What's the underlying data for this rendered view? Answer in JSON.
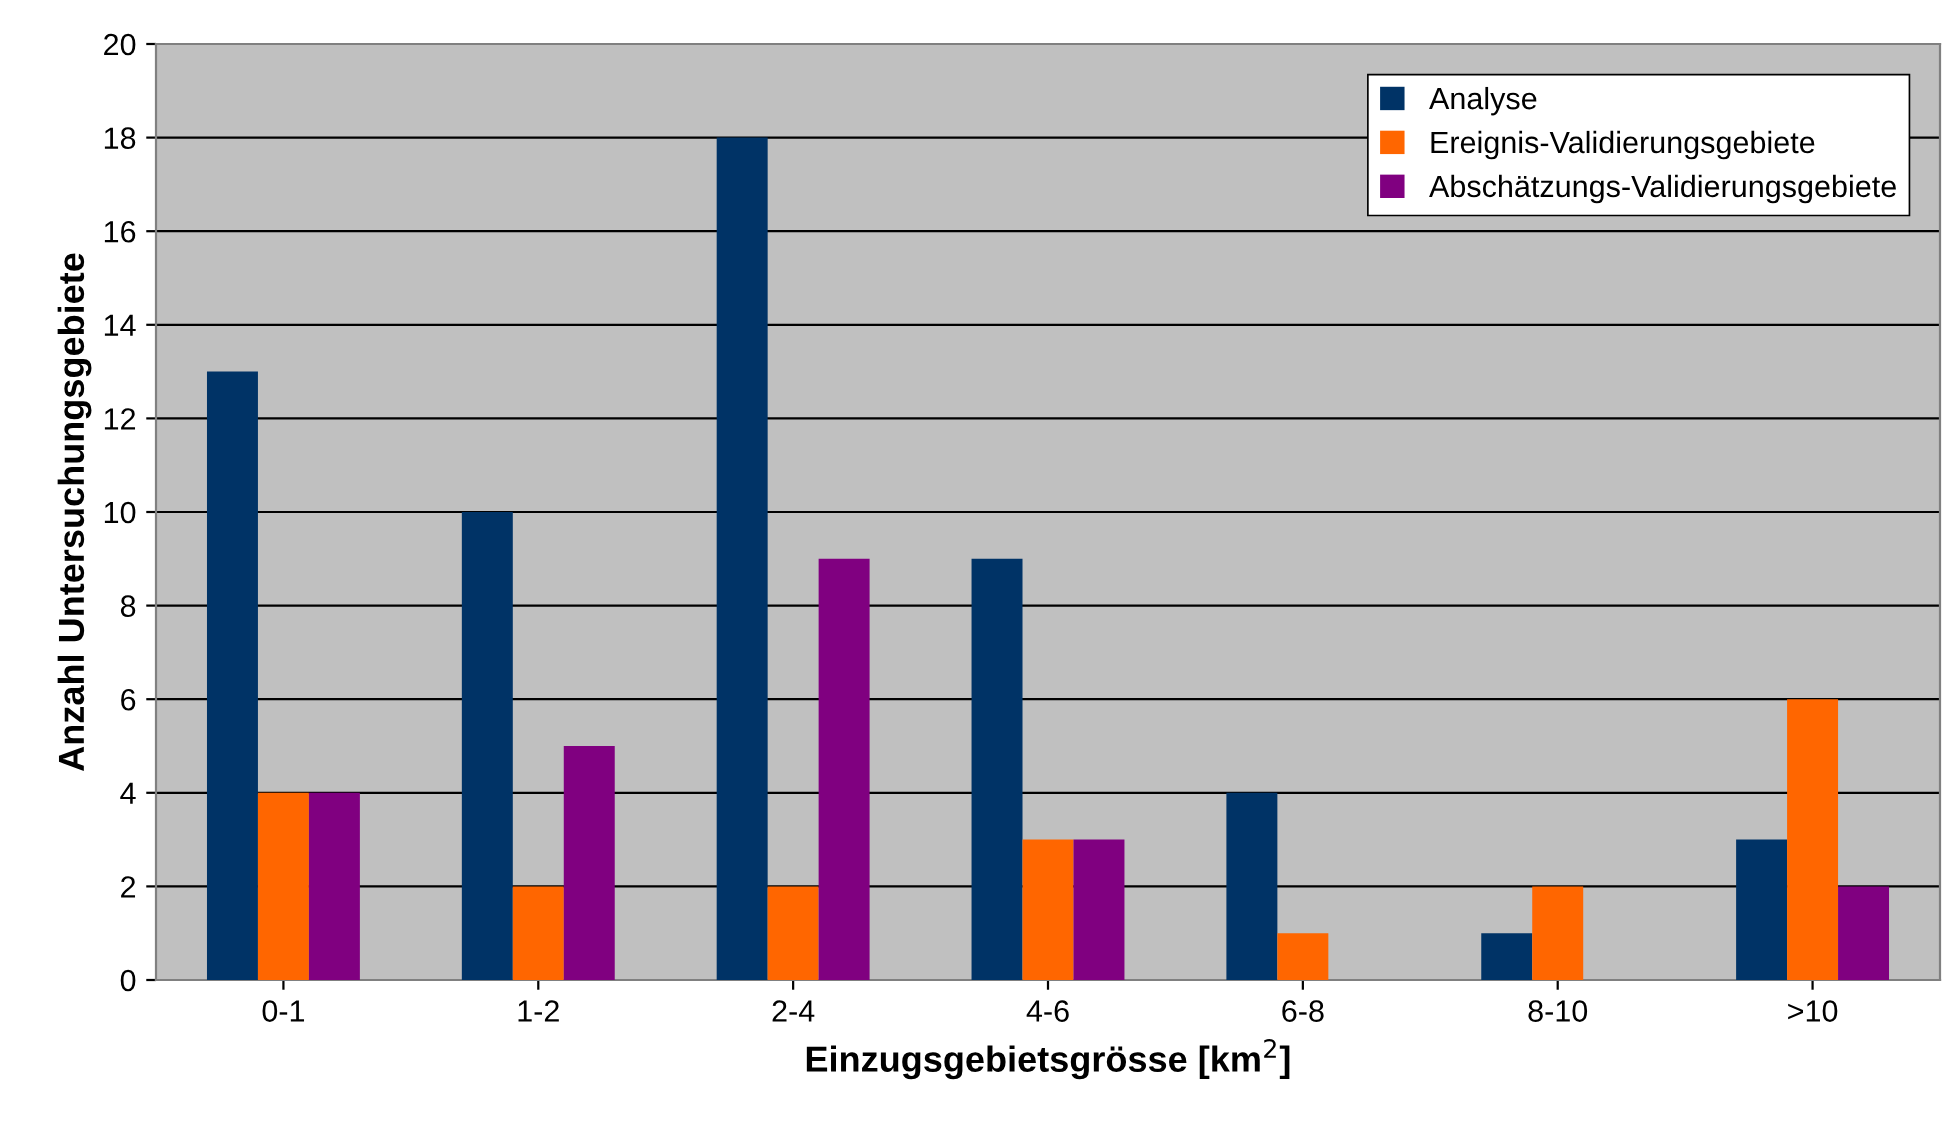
{
  "chart_data": {
    "type": "bar",
    "xlabel": "Einzugsgebietsgrösse [km$^{2}$]",
    "ylabel": "Anzahl Untersuchungsgebiete",
    "categories": [
      "0-1",
      "1-2",
      "2-4",
      "4-6",
      "6-8",
      "8-10",
      ">10"
    ],
    "series": [
      {
        "name": "Analyse",
        "color": "#003366",
        "values": [
          13,
          10,
          18,
          9,
          4,
          1,
          3
        ]
      },
      {
        "name": "Ereignis-Validierungsgebiete",
        "color": "#ff6600",
        "values": [
          4,
          2,
          2,
          3,
          1,
          2,
          6
        ]
      },
      {
        "name": "Abschätzungs-Validierungsgebiete",
        "color": "#800080",
        "values": [
          4,
          5,
          9,
          3,
          0,
          0,
          2
        ]
      }
    ],
    "ylim": [
      0,
      20
    ],
    "yticks": [
      0,
      2,
      4,
      6,
      8,
      10,
      12,
      14,
      16,
      18,
      20
    ],
    "grid": "y",
    "legend": "top right"
  }
}
